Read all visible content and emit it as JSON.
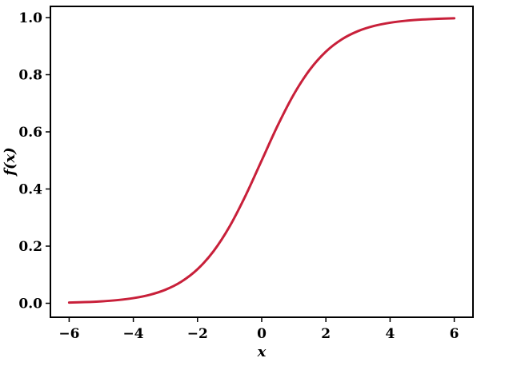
{
  "chart_data": {
    "type": "line",
    "title": "",
    "xlabel": "x",
    "ylabel": "f(x)",
    "xlim": [
      -6.5,
      6.5
    ],
    "ylim": [
      -0.05,
      1.05
    ],
    "grid": false,
    "x_ticks": [
      "−6",
      "−4",
      "−2",
      "0",
      "2",
      "4",
      "6"
    ],
    "y_ticks": [
      "0.0",
      "0.2",
      "0.4",
      "0.6",
      "0.8",
      "1.0"
    ],
    "series": [
      {
        "color": "#c8203a",
        "x": [
          -6,
          -5.5,
          -5,
          -4.5,
          -4,
          -3.5,
          -3,
          -2.5,
          -2,
          -1.5,
          -1,
          -0.5,
          0,
          0.5,
          1,
          1.5,
          2,
          2.5,
          3,
          3.5,
          4,
          4.5,
          5,
          5.5,
          6
        ],
        "y": [
          0.0025,
          0.0041,
          0.0067,
          0.011,
          0.018,
          0.0293,
          0.0474,
          0.0759,
          0.1192,
          0.1824,
          0.2689,
          0.3775,
          0.5,
          0.6225,
          0.7311,
          0.8176,
          0.8808,
          0.9241,
          0.9526,
          0.9707,
          0.982,
          0.989,
          0.9933,
          0.9959,
          0.9975
        ]
      }
    ]
  }
}
